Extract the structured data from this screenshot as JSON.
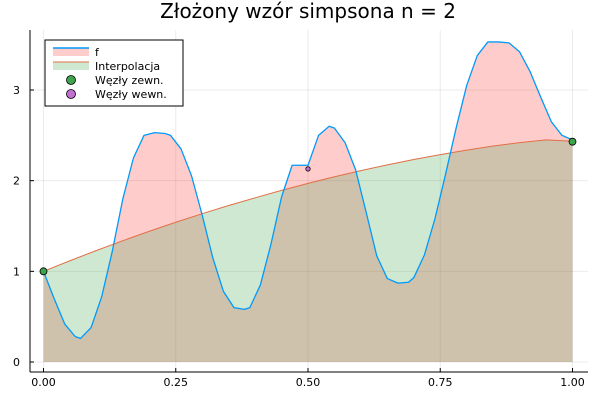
{
  "chart_data": {
    "type": "line",
    "title": "Złożony wzór simpsona n = 2",
    "xlim": [
      0,
      1
    ],
    "ylim": [
      0,
      3.5
    ],
    "x_ticks": [
      0,
      0.25,
      0.5,
      0.75,
      1
    ],
    "x_tick_labels": [
      "0.00",
      "0.25",
      "0.50",
      "0.75",
      "1.00"
    ],
    "y_ticks": [
      0,
      1,
      2,
      3
    ],
    "y_tick_labels": [
      "0",
      "1",
      "2",
      "3"
    ],
    "grid": true,
    "legend_position": "top-left",
    "legend": [
      {
        "label": "f",
        "kind": "line",
        "color": "#009AFA"
      },
      {
        "label": "Interpolacja",
        "kind": "line",
        "color": "#E26F46"
      },
      {
        "label": "Węzły zewn.",
        "kind": "marker",
        "color": "#3DA44D"
      },
      {
        "label": "Węzły wewn.",
        "kind": "marker",
        "color": "#C270D2"
      }
    ],
    "series": [
      {
        "name": "f",
        "color": "#009AFA",
        "fill": "#FF0000",
        "x": [
          0.0,
          0.02,
          0.04,
          0.06,
          0.07,
          0.09,
          0.11,
          0.13,
          0.15,
          0.17,
          0.19,
          0.21,
          0.23,
          0.24,
          0.26,
          0.28,
          0.3,
          0.32,
          0.34,
          0.36,
          0.38,
          0.39,
          0.41,
          0.43,
          0.45,
          0.47,
          0.5,
          0.52,
          0.54,
          0.55,
          0.57,
          0.59,
          0.61,
          0.63,
          0.65,
          0.67,
          0.69,
          0.7,
          0.72,
          0.74,
          0.76,
          0.78,
          0.8,
          0.82,
          0.84,
          0.86,
          0.88,
          0.9,
          0.92,
          0.94,
          0.96,
          0.98,
          1.0
        ],
        "y": [
          1.0,
          0.7,
          0.42,
          0.28,
          0.26,
          0.38,
          0.72,
          1.22,
          1.8,
          2.25,
          2.5,
          2.53,
          2.52,
          2.5,
          2.35,
          2.05,
          1.62,
          1.15,
          0.78,
          0.6,
          0.58,
          0.6,
          0.85,
          1.3,
          1.82,
          2.17,
          2.17,
          2.5,
          2.6,
          2.58,
          2.42,
          2.12,
          1.65,
          1.17,
          0.92,
          0.87,
          0.88,
          0.93,
          1.18,
          1.58,
          2.07,
          2.58,
          3.05,
          3.38,
          3.53,
          3.53,
          3.52,
          3.42,
          3.2,
          2.92,
          2.65,
          2.5,
          2.45
        ]
      },
      {
        "name": "Interpolacja",
        "color": "#E26F46",
        "fill": "#3DA44D",
        "x": [
          0.0,
          0.05,
          0.1,
          0.15,
          0.2,
          0.25,
          0.3,
          0.35,
          0.4,
          0.45,
          0.5,
          0.55,
          0.6,
          0.65,
          0.7,
          0.75,
          0.8,
          0.85,
          0.9,
          0.95,
          1.0
        ],
        "y": [
          1.0,
          1.117,
          1.23,
          1.338,
          1.442,
          1.541,
          1.636,
          1.726,
          1.811,
          1.893,
          1.97,
          2.043,
          2.111,
          2.174,
          2.233,
          2.287,
          2.337,
          2.382,
          2.419,
          2.45,
          2.435
        ]
      },
      {
        "name": "Węzły zewn.",
        "color": "#3DA44D",
        "x": [
          0.0,
          1.0
        ],
        "y": [
          1.0,
          2.43
        ]
      },
      {
        "name": "Węzły wewn.",
        "color": "#C270D2",
        "x": [
          0.5
        ],
        "y": [
          2.13
        ]
      }
    ]
  }
}
